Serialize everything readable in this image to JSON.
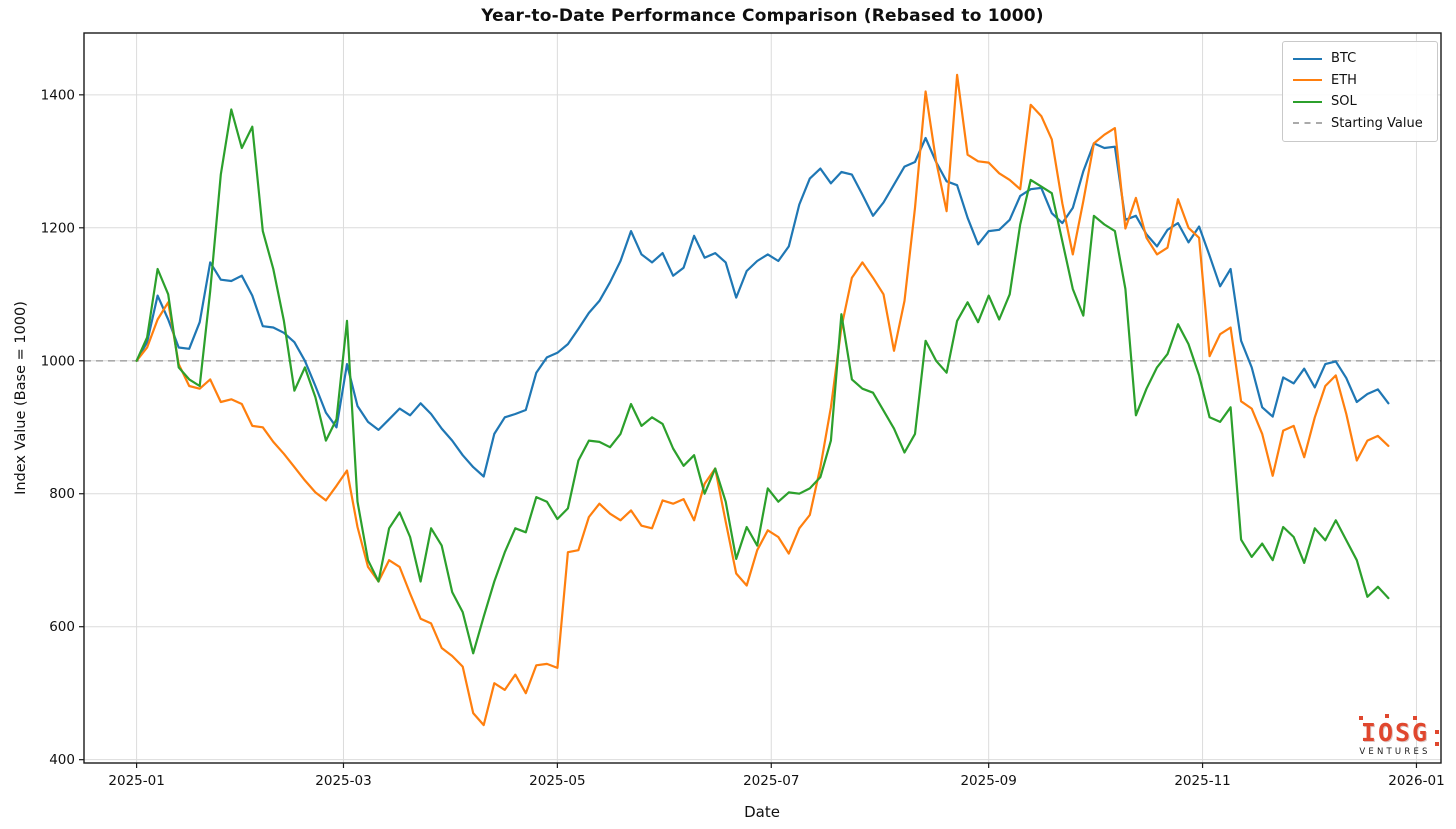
{
  "title": "Year-to-Date Performance Comparison (Rebased to 1000)",
  "axes": {
    "xlabel": "Date",
    "ylabel": "Index Value (Base = 1000)"
  },
  "legend": {
    "items": [
      {
        "label": "BTC",
        "color": "#1f77b4",
        "style": "solid"
      },
      {
        "label": "ETH",
        "color": "#ff7f0e",
        "style": "solid"
      },
      {
        "label": "SOL",
        "color": "#2ca02c",
        "style": "solid"
      },
      {
        "label": "Starting Value",
        "color": "#aaaaaa",
        "style": "dashed"
      }
    ]
  },
  "logo": {
    "main": "IOSG",
    "sub": "VENTURES",
    "color": "#e0472e"
  },
  "chart_data": {
    "type": "line",
    "title": "Year-to-Date Performance Comparison (Rebased to 1000)",
    "xlabel": "Date",
    "ylabel": "Index Value (Base = 1000)",
    "grid": true,
    "legend_position": "upper right",
    "baseline": {
      "label": "Starting Value",
      "value": 1000,
      "color": "#aaaaaa"
    },
    "x_unit": "day offset from 2025-01-01, one point every 3 days",
    "xlim": [
      -15,
      372
    ],
    "ylim": [
      395,
      1493
    ],
    "y_ticks": [
      400,
      600,
      800,
      1000,
      1200,
      1400
    ],
    "x_ticks": [
      {
        "day": 0,
        "label": "2025-01"
      },
      {
        "day": 59,
        "label": "2025-03"
      },
      {
        "day": 120,
        "label": "2025-05"
      },
      {
        "day": 181,
        "label": "2025-07"
      },
      {
        "day": 243,
        "label": "2025-09"
      },
      {
        "day": 304,
        "label": "2025-11"
      },
      {
        "day": 365,
        "label": "2026-01"
      }
    ],
    "x": [
      0,
      3,
      6,
      9,
      12,
      15,
      18,
      21,
      24,
      27,
      30,
      33,
      36,
      39,
      42,
      45,
      48,
      51,
      54,
      57,
      60,
      63,
      66,
      69,
      72,
      75,
      78,
      81,
      84,
      87,
      90,
      93,
      96,
      99,
      102,
      105,
      108,
      111,
      114,
      117,
      120,
      123,
      126,
      129,
      132,
      135,
      138,
      141,
      144,
      147,
      150,
      153,
      156,
      159,
      162,
      165,
      168,
      171,
      174,
      177,
      180,
      183,
      186,
      189,
      192,
      195,
      198,
      201,
      204,
      207,
      210,
      213,
      216,
      219,
      222,
      225,
      228,
      231,
      234,
      237,
      240,
      243,
      246,
      249,
      252,
      255,
      258,
      261,
      264,
      267,
      270,
      273,
      276,
      279,
      282,
      285,
      288,
      291,
      294,
      297,
      300,
      303,
      306,
      309,
      312,
      315,
      318,
      321,
      324,
      327,
      330,
      333,
      336,
      339,
      342,
      345,
      348,
      351,
      354,
      357
    ],
    "series": [
      {
        "name": "BTC",
        "color": "#1f77b4",
        "values": [
          1000,
          1028,
          1098,
          1062,
          1020,
          1018,
          1058,
          1148,
          1122,
          1120,
          1128,
          1098,
          1052,
          1050,
          1042,
          1028,
          1000,
          962,
          922,
          900,
          995,
          932,
          908,
          896,
          912,
          928,
          918,
          936,
          920,
          898,
          880,
          858,
          840,
          826,
          890,
          915,
          920,
          926,
          982,
          1005,
          1012,
          1025,
          1048,
          1072,
          1090,
          1118,
          1150,
          1195,
          1160,
          1148,
          1162,
          1128,
          1140,
          1188,
          1155,
          1162,
          1148,
          1095,
          1135,
          1150,
          1160,
          1150,
          1172,
          1235,
          1274,
          1289,
          1267,
          1284,
          1280,
          1250,
          1218,
          1238,
          1265,
          1292,
          1299,
          1335,
          1299,
          1270,
          1264,
          1215,
          1175,
          1195,
          1197,
          1212,
          1248,
          1258,
          1260,
          1222,
          1207,
          1230,
          1285,
          1327,
          1320,
          1322,
          1212,
          1218,
          1190,
          1172,
          1197,
          1207,
          1178,
          1202,
          1158,
          1112,
          1138,
          1030,
          990,
          930,
          916,
          975,
          966,
          988,
          960,
          995,
          999,
          974,
          938,
          950,
          957,
          936
        ]
      },
      {
        "name": "ETH",
        "color": "#ff7f0e",
        "values": [
          1000,
          1020,
          1062,
          1088,
          995,
          962,
          958,
          972,
          938,
          942,
          935,
          902,
          900,
          878,
          860,
          840,
          820,
          802,
          790,
          812,
          835,
          750,
          690,
          668,
          700,
          690,
          650,
          612,
          605,
          568,
          556,
          540,
          470,
          452,
          515,
          505,
          528,
          500,
          542,
          544,
          538,
          712,
          715,
          765,
          785,
          770,
          760,
          775,
          752,
          748,
          790,
          785,
          792,
          760,
          815,
          838,
          758,
          680,
          662,
          715,
          745,
          735,
          710,
          748,
          768,
          840,
          930,
          1050,
          1125,
          1148,
          1125,
          1100,
          1015,
          1090,
          1230,
          1405,
          1300,
          1225,
          1430,
          1310,
          1300,
          1298,
          1282,
          1272,
          1258,
          1385,
          1368,
          1333,
          1237,
          1160,
          1240,
          1327,
          1340,
          1350,
          1199,
          1245,
          1185,
          1160,
          1170,
          1243,
          1200,
          1185,
          1007,
          1040,
          1050,
          939,
          928,
          890,
          827,
          895,
          902,
          855,
          915,
          962,
          978,
          920,
          850,
          880,
          887,
          872
        ]
      },
      {
        "name": "SOL",
        "color": "#2ca02c",
        "values": [
          1000,
          1035,
          1138,
          1100,
          990,
          972,
          962,
          1105,
          1280,
          1378,
          1320,
          1352,
          1195,
          1138,
          1060,
          955,
          990,
          945,
          880,
          912,
          1060,
          788,
          700,
          668,
          748,
          772,
          735,
          668,
          748,
          722,
          652,
          622,
          560,
          615,
          668,
          712,
          748,
          742,
          795,
          788,
          762,
          778,
          850,
          880,
          878,
          870,
          890,
          935,
          902,
          915,
          905,
          868,
          842,
          858,
          800,
          838,
          788,
          702,
          750,
          722,
          808,
          788,
          802,
          800,
          808,
          825,
          880,
          1070,
          972,
          958,
          952,
          925,
          898,
          862,
          890,
          1030,
          1000,
          982,
          1060,
          1088,
          1058,
          1098,
          1062,
          1100,
          1205,
          1272,
          1262,
          1252,
          1180,
          1108,
          1068,
          1218,
          1205,
          1195,
          1108,
          918,
          958,
          990,
          1010,
          1055,
          1025,
          978,
          915,
          908,
          930,
          731,
          705,
          725,
          700,
          750,
          735,
          696,
          748,
          730,
          760,
          730,
          700,
          645,
          660,
          643
        ]
      }
    ]
  }
}
